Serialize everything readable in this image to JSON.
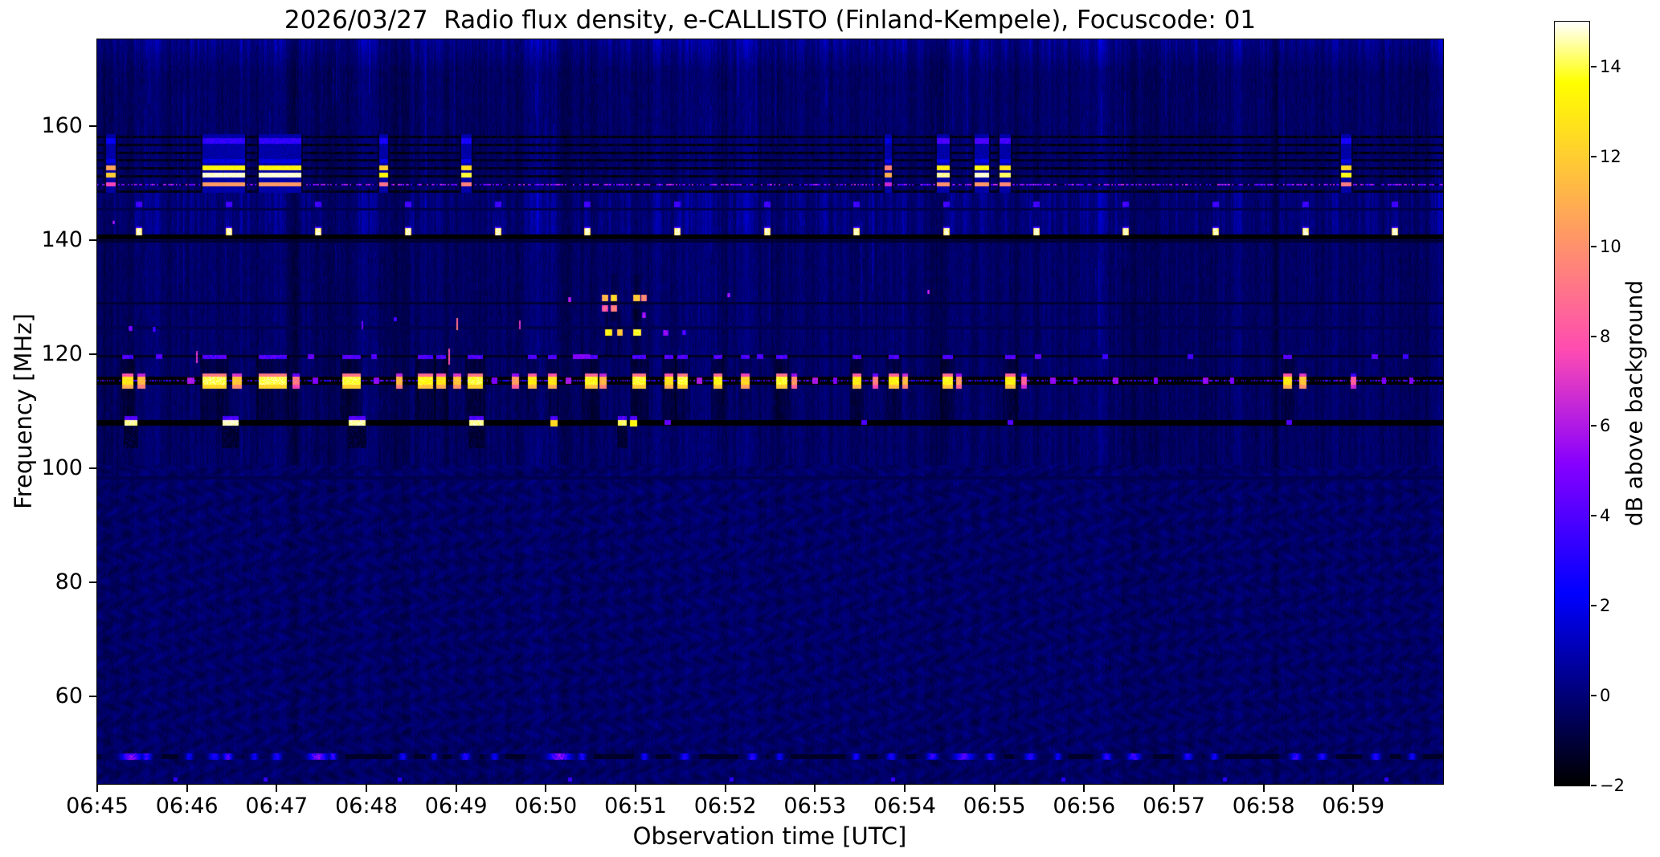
{
  "title": "2026/03/27  Radio flux density, e-CALLISTO (Finland-Kempele), Focuscode: 01",
  "chart_data": {
    "type": "heatmap",
    "title": "2026/03/27  Radio flux density, e-CALLISTO (Finland-Kempele), Focuscode: 01",
    "xlabel": "Observation time [UTC]",
    "ylabel": "Frequency [MHz]",
    "colorbar_label": "dB above background",
    "colormap": "gnuplot2",
    "grid": false,
    "time_start_utc": "06:45",
    "time_end_utc": "07:00",
    "time_span_min": 15,
    "x_ticks": [
      "06:45",
      "06:46",
      "06:47",
      "06:48",
      "06:49",
      "06:50",
      "06:51",
      "06:52",
      "06:53",
      "06:54",
      "06:55",
      "06:56",
      "06:57",
      "06:58",
      "06:59"
    ],
    "y_ticks_mhz": [
      160,
      140,
      120,
      100,
      80,
      60
    ],
    "freq_range_mhz": [
      44.6,
      175.2
    ],
    "value_range_db": [
      -2,
      15
    ],
    "colorbar_ticks": [
      {
        "v": 14,
        "label": "14"
      },
      {
        "v": 12,
        "label": "12"
      },
      {
        "v": 10,
        "label": "10"
      },
      {
        "v": 8,
        "label": "8"
      },
      {
        "v": 6,
        "label": "6"
      },
      {
        "v": 4,
        "label": "4"
      },
      {
        "v": 2,
        "label": "2"
      },
      {
        "v": 0,
        "label": "0"
      },
      {
        "v": -2,
        "label": "−2"
      }
    ],
    "features": {
      "noise": {
        "seed": 20260327,
        "base_db": 0.12,
        "mottle_below_mhz": 100.5,
        "mottle_amp": 0.33,
        "ripple_amp": 0.16,
        "top_band_above_mhz": 169.5,
        "streaks": 90,
        "texture_band": [
          141.3,
          148.3
        ]
      },
      "lines": [
        {
          "f": 140.6,
          "h": 0.6,
          "db": -1.9
        },
        {
          "f": 139.8,
          "h": 0.3,
          "db": -1.0,
          "dash": 1
        },
        {
          "f": 119.7,
          "h": 0.35,
          "db": -1.2
        },
        {
          "f": 115.4,
          "h": 1.3,
          "db": -1.9
        },
        {
          "f": 108.0,
          "h": 0.9,
          "db": -1.85
        },
        {
          "f": 129.0,
          "h": 0.35,
          "db": -0.9,
          "dash": 1
        },
        {
          "f": 124.7,
          "h": 0.3,
          "db": -0.5,
          "dash": 1
        },
        {
          "f": 145.5,
          "h": 0.25,
          "db": -0.6,
          "dash": 1
        },
        {
          "f": 98.4,
          "h": 0.4,
          "db": -0.5
        },
        {
          "f": 49.5,
          "h": 0.7,
          "db": -1.15
        }
      ],
      "band": {
        "f_lo": 148.4,
        "f_hi": 158.6,
        "rows": [
          158.2,
          156.8,
          155.4,
          154.0,
          152.6,
          151.2,
          148.6
        ],
        "speckle_row": 149.8
      },
      "beacons": {
        "f": 141.5,
        "fh": 1.1,
        "t0": 0.43,
        "period": 1.0,
        "n": 15,
        "db": 14.8,
        "echo_f": 146.3,
        "echo_db": 3.6
      },
      "fm_bursts": [
        {
          "t0": 0.1,
          "t1": 0.2,
          "db": 12.0,
          "blue": 2.5
        },
        {
          "t0": 1.17,
          "t1": 1.64,
          "db": 14.8,
          "blue": 3.6
        },
        {
          "t0": 1.8,
          "t1": 2.27,
          "db": 14.8,
          "blue": 3.6
        },
        {
          "t0": 3.14,
          "t1": 3.23,
          "db": 13.5,
          "blue": 3.0
        },
        {
          "t0": 4.06,
          "t1": 4.16,
          "db": 14.0,
          "blue": 3.0
        },
        {
          "t0": 8.78,
          "t1": 8.85,
          "db": 11.0,
          "blue": 2.0
        },
        {
          "t0": 9.36,
          "t1": 9.49,
          "db": 14.5,
          "blue": 4.2
        },
        {
          "t0": 9.78,
          "t1": 9.93,
          "db": 14.8,
          "blue": 4.2
        },
        {
          "t0": 10.06,
          "t1": 10.17,
          "db": 14.2,
          "blue": 4.0
        },
        {
          "t0": 13.86,
          "t1": 13.97,
          "db": 13.8,
          "blue": 3.0
        }
      ],
      "b115": [
        [
          0.28,
          0.12,
          13.5
        ],
        [
          0.45,
          0.08,
          12
        ],
        [
          1.0,
          0.07,
          6
        ],
        [
          1.17,
          0.26,
          14.8
        ],
        [
          1.5,
          0.1,
          12.5
        ],
        [
          1.8,
          0.3,
          14.8
        ],
        [
          2.18,
          0.07,
          10
        ],
        [
          2.4,
          0.05,
          5
        ],
        [
          2.73,
          0.2,
          14.6
        ],
        [
          3.08,
          0.05,
          5.5
        ],
        [
          3.33,
          0.06,
          12
        ],
        [
          3.57,
          0.16,
          14.2
        ],
        [
          3.78,
          0.1,
          13.5
        ],
        [
          3.97,
          0.08,
          12.5
        ],
        [
          4.13,
          0.16,
          14.6
        ],
        [
          4.4,
          0.05,
          5
        ],
        [
          4.62,
          0.07,
          11
        ],
        [
          4.8,
          0.09,
          13.8
        ],
        [
          5.02,
          0.09,
          13.5
        ],
        [
          5.22,
          0.05,
          6
        ],
        [
          5.44,
          0.13,
          14.2
        ],
        [
          5.6,
          0.07,
          12
        ],
        [
          5.96,
          0.14,
          14.5
        ],
        [
          6.32,
          0.09,
          13.5
        ],
        [
          6.47,
          0.11,
          14.6
        ],
        [
          6.68,
          0.05,
          6
        ],
        [
          6.87,
          0.09,
          14.2
        ],
        [
          7.17,
          0.09,
          13
        ],
        [
          7.57,
          0.12,
          14.4
        ],
        [
          7.74,
          0.05,
          11
        ],
        [
          7.97,
          0.05,
          6
        ],
        [
          8.2,
          0.04,
          5
        ],
        [
          8.42,
          0.09,
          13.8
        ],
        [
          8.64,
          0.05,
          10
        ],
        [
          8.82,
          0.11,
          14
        ],
        [
          8.97,
          0.05,
          12
        ],
        [
          9.42,
          0.11,
          14.3
        ],
        [
          9.57,
          0.05,
          11
        ],
        [
          10.12,
          0.11,
          14
        ],
        [
          10.3,
          0.05,
          9
        ],
        [
          10.62,
          0.05,
          5.5
        ],
        [
          10.88,
          0.04,
          5
        ],
        [
          11.32,
          0.05,
          5.5
        ],
        [
          11.78,
          0.04,
          5
        ],
        [
          12.32,
          0.05,
          5.5
        ],
        [
          12.63,
          0.04,
          5
        ],
        [
          13.22,
          0.09,
          13.6
        ],
        [
          13.4,
          0.07,
          12.5
        ],
        [
          13.97,
          0.05,
          9
        ],
        [
          14.32,
          0.04,
          5
        ],
        [
          14.62,
          0.04,
          5
        ]
      ],
      "b108": [
        [
          0.3,
          0.13,
          14.5,
          1
        ],
        [
          1.4,
          0.17,
          14.8,
          1
        ],
        [
          2.8,
          0.18,
          14.6,
          1
        ],
        [
          4.15,
          0.15,
          14.5,
          1
        ],
        [
          5.05,
          0.07,
          12.5,
          0
        ],
        [
          5.8,
          0.09,
          14.2,
          1
        ],
        [
          5.94,
          0.07,
          13.5,
          0
        ],
        [
          6.32,
          0.06,
          4.5,
          0
        ],
        [
          8.52,
          0.05,
          4,
          0
        ],
        [
          10.15,
          0.05,
          4,
          0
        ],
        [
          13.25,
          0.05,
          4,
          0
        ]
      ],
      "b119": [
        [
          0.65,
          0.06,
          4
        ],
        [
          2.35,
          0.06,
          4.5
        ],
        [
          3.05,
          0.05,
          4
        ],
        [
          5.3,
          0.18,
          5
        ],
        [
          7.35,
          0.06,
          4
        ],
        [
          10.45,
          0.06,
          4.5
        ],
        [
          11.2,
          0.05,
          3.5
        ],
        [
          12.15,
          0.05,
          3.8
        ],
        [
          14.2,
          0.06,
          4.2
        ],
        [
          14.55,
          0.05,
          3.6
        ]
      ],
      "spots": [
        [
          5.62,
          129.9,
          0.06,
          1.1,
          11.5
        ],
        [
          5.72,
          129.9,
          0.06,
          1.1,
          12.5
        ],
        [
          5.62,
          128.1,
          0.06,
          0.9,
          8.5
        ],
        [
          5.72,
          128.1,
          0.06,
          0.9,
          9.5
        ],
        [
          5.66,
          123.8,
          0.07,
          1.0,
          13.5
        ],
        [
          5.79,
          123.8,
          0.05,
          1.0,
          12
        ],
        [
          5.97,
          129.9,
          0.07,
          1.1,
          12
        ],
        [
          6.06,
          129.9,
          0.05,
          1.1,
          10
        ],
        [
          5.97,
          123.8,
          0.08,
          1.0,
          13.8
        ],
        [
          6.07,
          126.9,
          0.04,
          0.8,
          6
        ],
        [
          6.3,
          123.8,
          0.05,
          0.8,
          5.5
        ],
        [
          6.52,
          123.8,
          0.04,
          0.7,
          4.5
        ],
        [
          5.25,
          129.6,
          0.03,
          0.7,
          6.5
        ],
        [
          0.35,
          124.5,
          0.04,
          0.7,
          5
        ],
        [
          0.62,
          124.4,
          0.03,
          0.6,
          4
        ],
        [
          3.3,
          126.2,
          0.03,
          0.6,
          4.5
        ],
        [
          7.02,
          130.4,
          0.03,
          0.6,
          6
        ],
        [
          9.25,
          131.0,
          0.02,
          0.5,
          7
        ],
        [
          0.17,
          143.2,
          0.02,
          0.4,
          6.5
        ]
      ],
      "vdashes": [
        [
          4.0,
          124.3,
          126.3,
          9
        ],
        [
          4.7,
          124.5,
          125.9,
          7
        ],
        [
          1.1,
          118.5,
          120.5,
          7
        ],
        [
          3.91,
          118.3,
          121.0,
          8
        ],
        [
          2.95,
          124.5,
          125.8,
          5
        ]
      ],
      "b49": [
        [
          0.38,
          0.22,
          6.5
        ],
        [
          0.55,
          0.1,
          5
        ],
        [
          1.02,
          0.08,
          3.5
        ],
        [
          1.3,
          0.12,
          4
        ],
        [
          1.45,
          0.1,
          5.5
        ],
        [
          1.75,
          0.08,
          3.5
        ],
        [
          2.0,
          0.1,
          4
        ],
        [
          2.45,
          0.2,
          6.8
        ],
        [
          2.62,
          0.08,
          4.5
        ],
        [
          3.4,
          0.08,
          4
        ],
        [
          3.75,
          0.06,
          3.2
        ],
        [
          4.1,
          0.1,
          4.2
        ],
        [
          4.42,
          0.08,
          3.4
        ],
        [
          5.15,
          0.25,
          6.5
        ],
        [
          5.4,
          0.08,
          4
        ],
        [
          6.1,
          0.08,
          3.6
        ],
        [
          6.55,
          0.1,
          4
        ],
        [
          7.3,
          0.1,
          4.2
        ],
        [
          7.6,
          0.08,
          3.4
        ],
        [
          8.45,
          0.08,
          3.8
        ],
        [
          8.85,
          0.1,
          4
        ],
        [
          9.3,
          0.12,
          4.6
        ],
        [
          9.65,
          0.22,
          5.2
        ],
        [
          9.95,
          0.1,
          4
        ],
        [
          10.4,
          0.12,
          4.4
        ],
        [
          10.7,
          0.08,
          3.4
        ],
        [
          11.25,
          0.1,
          4.4
        ],
        [
          11.55,
          0.14,
          4.8
        ],
        [
          12.15,
          0.1,
          4
        ],
        [
          12.45,
          0.08,
          3.6
        ],
        [
          13.35,
          0.12,
          4.6
        ],
        [
          13.65,
          0.1,
          4
        ],
        [
          14.25,
          0.1,
          4.2
        ],
        [
          14.65,
          0.08,
          3.6
        ]
      ],
      "dots45": [
        [
          0.85,
          3.2
        ],
        [
          1.85,
          3.4
        ],
        [
          3.35,
          3.2
        ],
        [
          5.25,
          3.5
        ],
        [
          7.05,
          3.3
        ],
        [
          8.85,
          3.4
        ],
        [
          10.75,
          3.2
        ],
        [
          12.55,
          3.3
        ],
        [
          14.35,
          3.2
        ]
      ]
    }
  }
}
